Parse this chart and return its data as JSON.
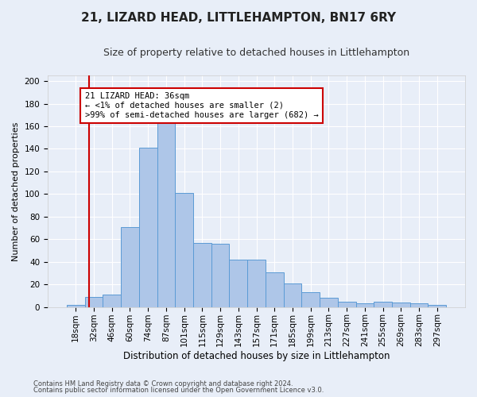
{
  "title": "21, LIZARD HEAD, LITTLEHAMPTON, BN17 6RY",
  "subtitle": "Size of property relative to detached houses in Littlehampton",
  "xlabel": "Distribution of detached houses by size in Littlehampton",
  "ylabel": "Number of detached properties",
  "footer_line1": "Contains HM Land Registry data © Crown copyright and database right 2024.",
  "footer_line2": "Contains public sector information licensed under the Open Government Licence v3.0.",
  "bar_labels": [
    "18sqm",
    "32sqm",
    "46sqm",
    "60sqm",
    "74sqm",
    "87sqm",
    "101sqm",
    "115sqm",
    "129sqm",
    "143sqm",
    "157sqm",
    "171sqm",
    "185sqm",
    "199sqm",
    "213sqm",
    "227sqm",
    "241sqm",
    "255sqm",
    "269sqm",
    "283sqm",
    "297sqm"
  ],
  "bar_values": [
    2,
    9,
    11,
    71,
    141,
    167,
    101,
    57,
    56,
    42,
    42,
    31,
    21,
    13,
    8,
    5,
    3,
    5,
    4,
    3,
    2
  ],
  "bar_color": "#aec6e8",
  "bar_edge_color": "#5b9bd5",
  "annotation_box_text": "21 LIZARD HEAD: 36sqm\n← <1% of detached houses are smaller (2)\n>99% of semi-detached houses are larger (682) →",
  "annotation_box_color": "#ffffff",
  "annotation_box_edge_color": "#cc0000",
  "vline_x": 0.72,
  "vline_color": "#cc0000",
  "ylim": [
    0,
    205
  ],
  "yticks": [
    0,
    20,
    40,
    60,
    80,
    100,
    120,
    140,
    160,
    180,
    200
  ],
  "background_color": "#e8eef8",
  "grid_color": "#ffffff",
  "title_fontsize": 11,
  "subtitle_fontsize": 9,
  "ylabel_fontsize": 8,
  "xlabel_fontsize": 8.5,
  "tick_fontsize": 7.5,
  "footer_fontsize": 6
}
